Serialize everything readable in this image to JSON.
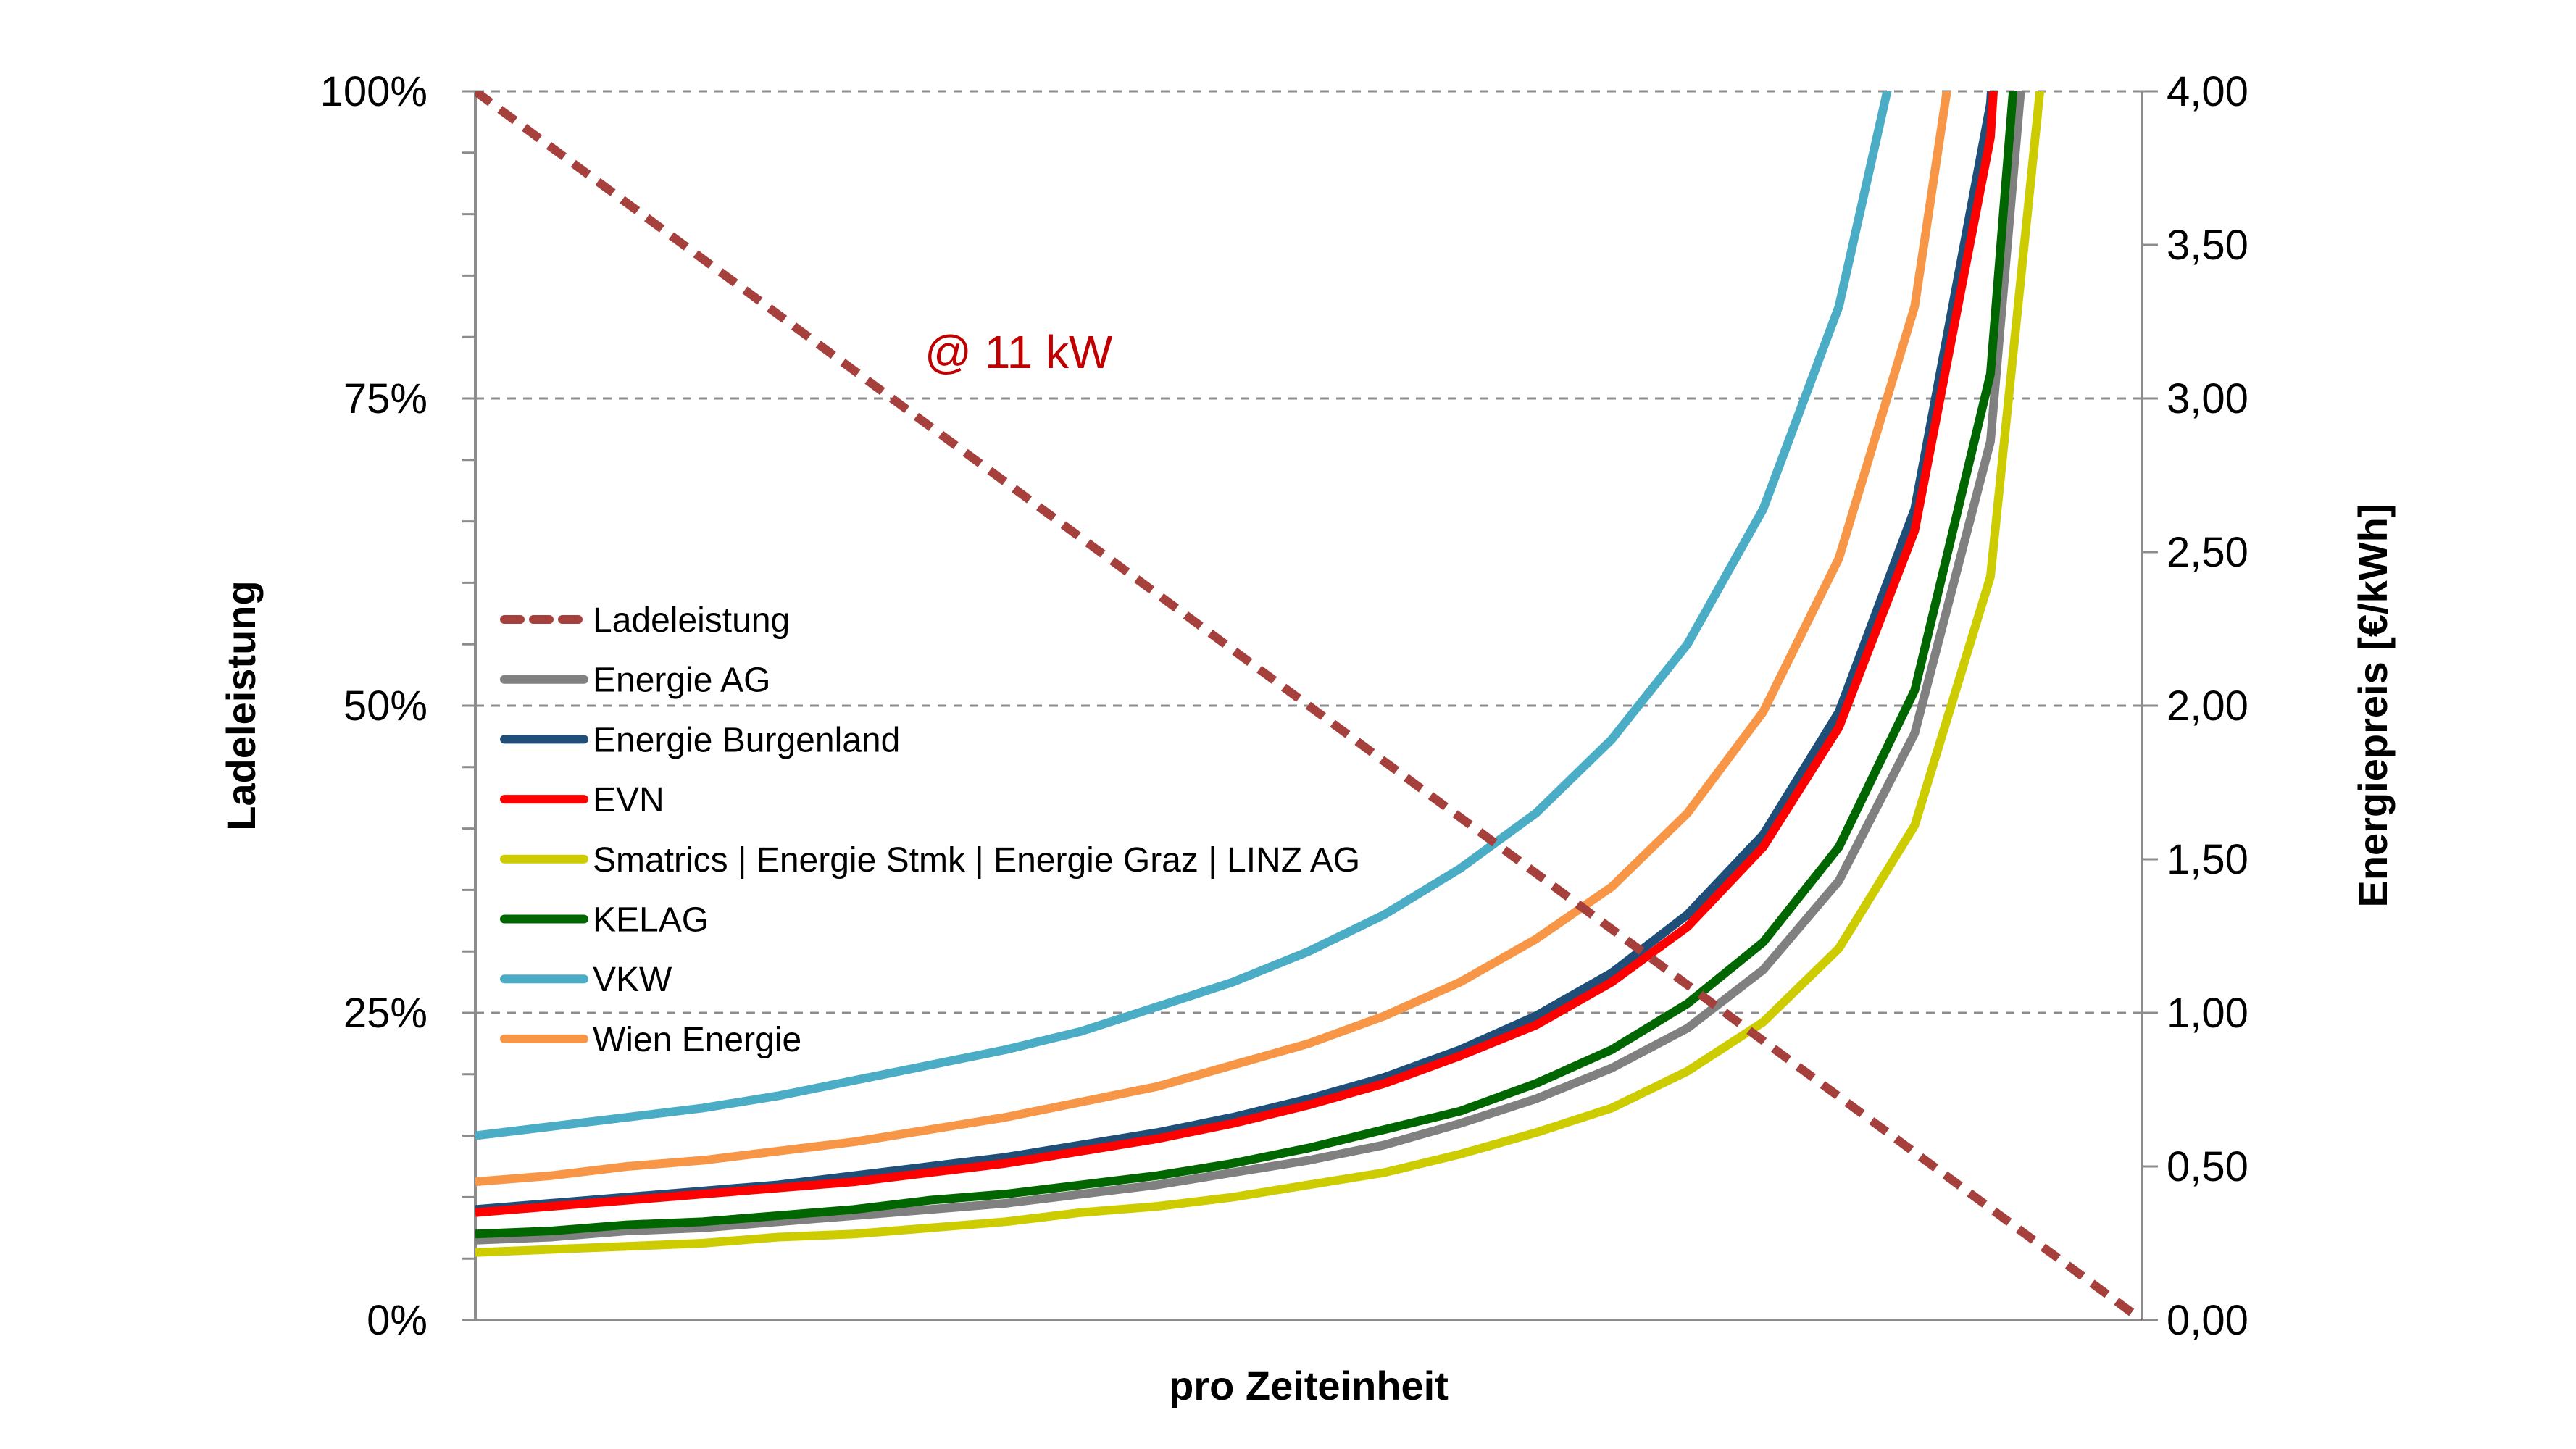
{
  "chart_data": {
    "type": "line",
    "xlabel": "pro Zeiteinheit",
    "ylabel_left": "Ladeleistung",
    "ylabel_right": "Energiepreis [€/kWh]",
    "annotation": "@ 11 kW",
    "annotation_color": "#c00000",
    "xlim": [
      0,
      22
    ],
    "ylim_left": [
      0,
      100
    ],
    "ylim_right": [
      0,
      4
    ],
    "left_ticks": [
      "0%",
      "25%",
      "50%",
      "75%",
      "100%"
    ],
    "left_tick_values": [
      0,
      25,
      50,
      75,
      100
    ],
    "right_ticks": [
      "0,00",
      "0,50",
      "1,00",
      "1,50",
      "2,00",
      "2,50",
      "3,00",
      "3,50",
      "4,00"
    ],
    "right_tick_values": [
      0,
      0.5,
      1,
      1.5,
      2,
      2.5,
      3,
      3.5,
      4
    ],
    "grid": "horizontal dashed at 25% steps",
    "legend_position": "left-middle",
    "ladeleistung": {
      "name": "Ladeleistung",
      "color": "#a5403d",
      "axis": "left",
      "x": [
        0,
        22
      ],
      "values": [
        100,
        0
      ]
    },
    "series": [
      {
        "name": "Energie AG",
        "color": "#808080",
        "values": [
          0.26,
          0.27,
          0.29,
          0.3,
          0.32,
          0.34,
          0.36,
          0.38,
          0.41,
          0.44,
          0.48,
          0.52,
          0.57,
          0.64,
          0.72,
          0.82,
          0.95,
          1.14,
          1.43,
          1.91,
          2.86,
          5.72
        ]
      },
      {
        "name": "Energie Burgenland",
        "color": "#1f4e79",
        "values": [
          0.36,
          0.38,
          0.4,
          0.42,
          0.44,
          0.47,
          0.5,
          0.53,
          0.57,
          0.61,
          0.66,
          0.72,
          0.79,
          0.88,
          0.99,
          1.13,
          1.32,
          1.58,
          1.98,
          2.64,
          3.96,
          7.92
        ]
      },
      {
        "name": "EVN",
        "color": "#ff0000",
        "values": [
          0.35,
          0.37,
          0.39,
          0.41,
          0.43,
          0.45,
          0.48,
          0.51,
          0.55,
          0.59,
          0.64,
          0.7,
          0.77,
          0.86,
          0.96,
          1.1,
          1.28,
          1.54,
          1.93,
          2.57,
          3.85,
          7.7
        ]
      },
      {
        "name": "Smatrics | Energie Stmk | Energie Graz | LINZ AG",
        "color": "#cccc00",
        "values": [
          0.22,
          0.23,
          0.24,
          0.25,
          0.27,
          0.28,
          0.3,
          0.32,
          0.35,
          0.37,
          0.4,
          0.44,
          0.48,
          0.54,
          0.61,
          0.69,
          0.81,
          0.97,
          1.21,
          1.61,
          2.42,
          4.84
        ]
      },
      {
        "name": "KELAG",
        "color": "#006600",
        "values": [
          0.28,
          0.29,
          0.31,
          0.32,
          0.34,
          0.36,
          0.39,
          0.41,
          0.44,
          0.47,
          0.51,
          0.56,
          0.62,
          0.68,
          0.77,
          0.88,
          1.03,
          1.23,
          1.54,
          2.05,
          3.08,
          6.16
        ]
      },
      {
        "name": "VKW",
        "color": "#4bacc6",
        "values": [
          0.6,
          0.63,
          0.66,
          0.69,
          0.73,
          0.78,
          0.83,
          0.88,
          0.94,
          1.02,
          1.1,
          1.2,
          1.32,
          1.47,
          1.65,
          1.89,
          2.2,
          2.64,
          3.3,
          4.4,
          6.6,
          13.2
        ]
      },
      {
        "name": "Wien Energie",
        "color": "#f79646",
        "values": [
          0.45,
          0.47,
          0.5,
          0.52,
          0.55,
          0.58,
          0.62,
          0.66,
          0.71,
          0.76,
          0.83,
          0.9,
          0.99,
          1.1,
          1.24,
          1.41,
          1.65,
          1.98,
          2.48,
          3.3,
          4.95,
          9.9
        ]
      }
    ]
  }
}
